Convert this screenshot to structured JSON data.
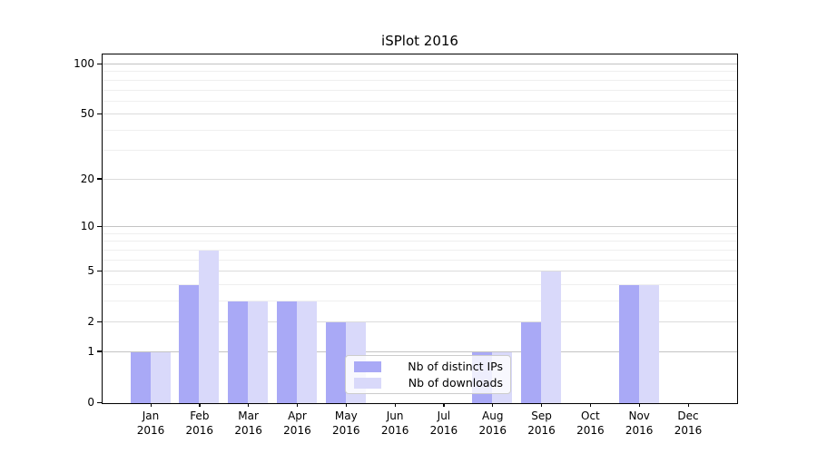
{
  "title": "iSPlot 2016",
  "legend": {
    "items": [
      {
        "label": "Nb of distinct IPs",
        "color": "#a9a9f6"
      },
      {
        "label": "Nb of downloads",
        "color": "#d9d9fa"
      }
    ]
  },
  "chart_data": {
    "type": "bar",
    "title": "iSPlot 2016",
    "categories": [
      "Jan 2016",
      "Feb 2016",
      "Mar 2016",
      "Apr 2016",
      "May 2016",
      "Jun 2016",
      "Jul 2016",
      "Aug 2016",
      "Sep 2016",
      "Oct 2016",
      "Nov 2016",
      "Dec 2016"
    ],
    "series": [
      {
        "name": "Nb of distinct IPs",
        "color": "#a9a9f6",
        "values": [
          1,
          4,
          3,
          3,
          2,
          0,
          0,
          1,
          2,
          0,
          4,
          0
        ]
      },
      {
        "name": "Nb of downloads",
        "color": "#d9d9fa",
        "values": [
          1,
          7,
          3,
          3,
          2,
          0,
          0,
          1,
          5,
          0,
          4,
          0
        ]
      }
    ],
    "yscale": "log1p",
    "ylim": [
      0,
      113
    ],
    "yticks_labeled": [
      0,
      1,
      2,
      5,
      10,
      20,
      50,
      100
    ],
    "yticks_minor": [
      3,
      4,
      6,
      7,
      8,
      9,
      30,
      40,
      60,
      70,
      80,
      90
    ],
    "yticks_decade": [
      1,
      10,
      100
    ],
    "grid": true,
    "legend_position": "lower center",
    "grid_colors": {
      "decade": "#c3c3c3",
      "labeled": "#dcdcdc",
      "minor": "#efefef"
    }
  }
}
